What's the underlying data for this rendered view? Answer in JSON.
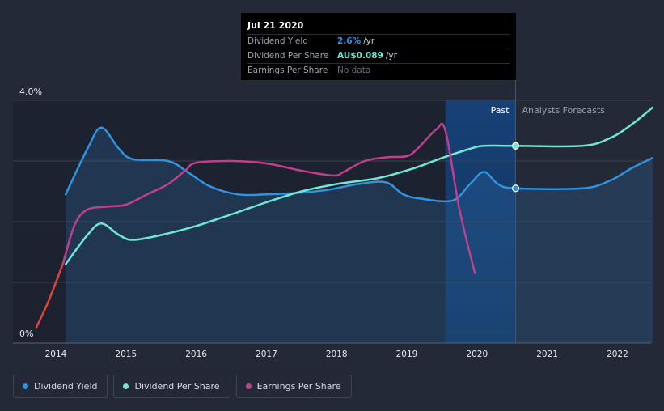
{
  "chart_data": {
    "type": "line",
    "x_ticks": [
      "2014",
      "2015",
      "2016",
      "2017",
      "2018",
      "2019",
      "2020",
      "2021",
      "2022"
    ],
    "y_axis": {
      "top_label": "4.0%",
      "bottom_label": "0%",
      "range": [
        0,
        4.0
      ]
    },
    "past_label": "Past",
    "forecast_label": "Analysts Forecasts",
    "series": [
      {
        "name": "Dividend Yield",
        "color": "#2f93e0",
        "unit": "percent",
        "points": [
          [
            2014.14,
            2.45
          ],
          [
            2014.45,
            3.2
          ],
          [
            2014.65,
            3.55
          ],
          [
            2014.9,
            3.2
          ],
          [
            2015.1,
            3.03
          ],
          [
            2015.6,
            3.0
          ],
          [
            2015.9,
            2.8
          ],
          [
            2016.2,
            2.58
          ],
          [
            2016.6,
            2.45
          ],
          [
            2017.0,
            2.45
          ],
          [
            2017.5,
            2.48
          ],
          [
            2017.9,
            2.53
          ],
          [
            2018.3,
            2.62
          ],
          [
            2018.7,
            2.65
          ],
          [
            2018.95,
            2.45
          ],
          [
            2019.2,
            2.38
          ],
          [
            2019.65,
            2.35
          ],
          [
            2019.9,
            2.62
          ],
          [
            2020.1,
            2.82
          ],
          [
            2020.3,
            2.62
          ],
          [
            2020.55,
            2.55
          ],
          [
            2021.5,
            2.55
          ],
          [
            2021.9,
            2.68
          ],
          [
            2022.2,
            2.88
          ],
          [
            2022.5,
            3.05
          ]
        ]
      },
      {
        "name": "Dividend Per Share",
        "color": "#6ee8d4",
        "unit": "AUD",
        "points": [
          [
            2014.14,
            1.3
          ],
          [
            2014.45,
            1.78
          ],
          [
            2014.65,
            1.97
          ],
          [
            2014.9,
            1.78
          ],
          [
            2015.1,
            1.7
          ],
          [
            2015.5,
            1.78
          ],
          [
            2016.0,
            1.93
          ],
          [
            2016.5,
            2.12
          ],
          [
            2017.0,
            2.32
          ],
          [
            2017.5,
            2.5
          ],
          [
            2018.0,
            2.62
          ],
          [
            2018.6,
            2.72
          ],
          [
            2019.1,
            2.88
          ],
          [
            2019.5,
            3.05
          ],
          [
            2019.9,
            3.2
          ],
          [
            2020.1,
            3.25
          ],
          [
            2020.55,
            3.25
          ],
          [
            2021.5,
            3.25
          ],
          [
            2021.9,
            3.38
          ],
          [
            2022.2,
            3.6
          ],
          [
            2022.5,
            3.88
          ]
        ]
      },
      {
        "name": "Earnings Per Share",
        "color": "#c23f8e",
        "negative_color": "#e0443f",
        "unit": "AUD",
        "points": [
          [
            2013.72,
            0.25
          ],
          [
            2013.9,
            0.7
          ],
          [
            2014.1,
            1.3
          ],
          [
            2014.27,
            1.95
          ],
          [
            2014.45,
            2.2
          ],
          [
            2014.75,
            2.25
          ],
          [
            2015.0,
            2.28
          ],
          [
            2015.3,
            2.45
          ],
          [
            2015.6,
            2.62
          ],
          [
            2015.85,
            2.85
          ],
          [
            2016.0,
            2.97
          ],
          [
            2016.5,
            3.0
          ],
          [
            2017.0,
            2.96
          ],
          [
            2017.5,
            2.84
          ],
          [
            2017.95,
            2.76
          ],
          [
            2018.1,
            2.82
          ],
          [
            2018.4,
            3.0
          ],
          [
            2018.7,
            3.06
          ],
          [
            2019.0,
            3.08
          ],
          [
            2019.15,
            3.2
          ],
          [
            2019.42,
            3.52
          ],
          [
            2019.55,
            3.5
          ],
          [
            2019.75,
            2.2
          ],
          [
            2019.97,
            1.15
          ]
        ]
      }
    ],
    "highlight_x": 2020.55,
    "forecast_start_x": 2020.55,
    "past_band_start_x": 2019.55,
    "grid": true,
    "legend_position": "bottom-left"
  },
  "tooltip": {
    "date": "Jul 21 2020",
    "rows": [
      {
        "label": "Dividend Yield",
        "value": "2.6%",
        "unit": "/yr",
        "color": "#2f93e0"
      },
      {
        "label": "Dividend Per Share",
        "value": "AU$0.089",
        "unit": "/yr",
        "color": "#6ee8d4"
      },
      {
        "label": "Earnings Per Share",
        "value": "No data"
      }
    ]
  },
  "legend": [
    {
      "label": "Dividend Yield",
      "color": "#2f93e0"
    },
    {
      "label": "Dividend Per Share",
      "color": "#6ee8d4"
    },
    {
      "label": "Earnings Per Share",
      "color": "#c23f8e"
    }
  ]
}
